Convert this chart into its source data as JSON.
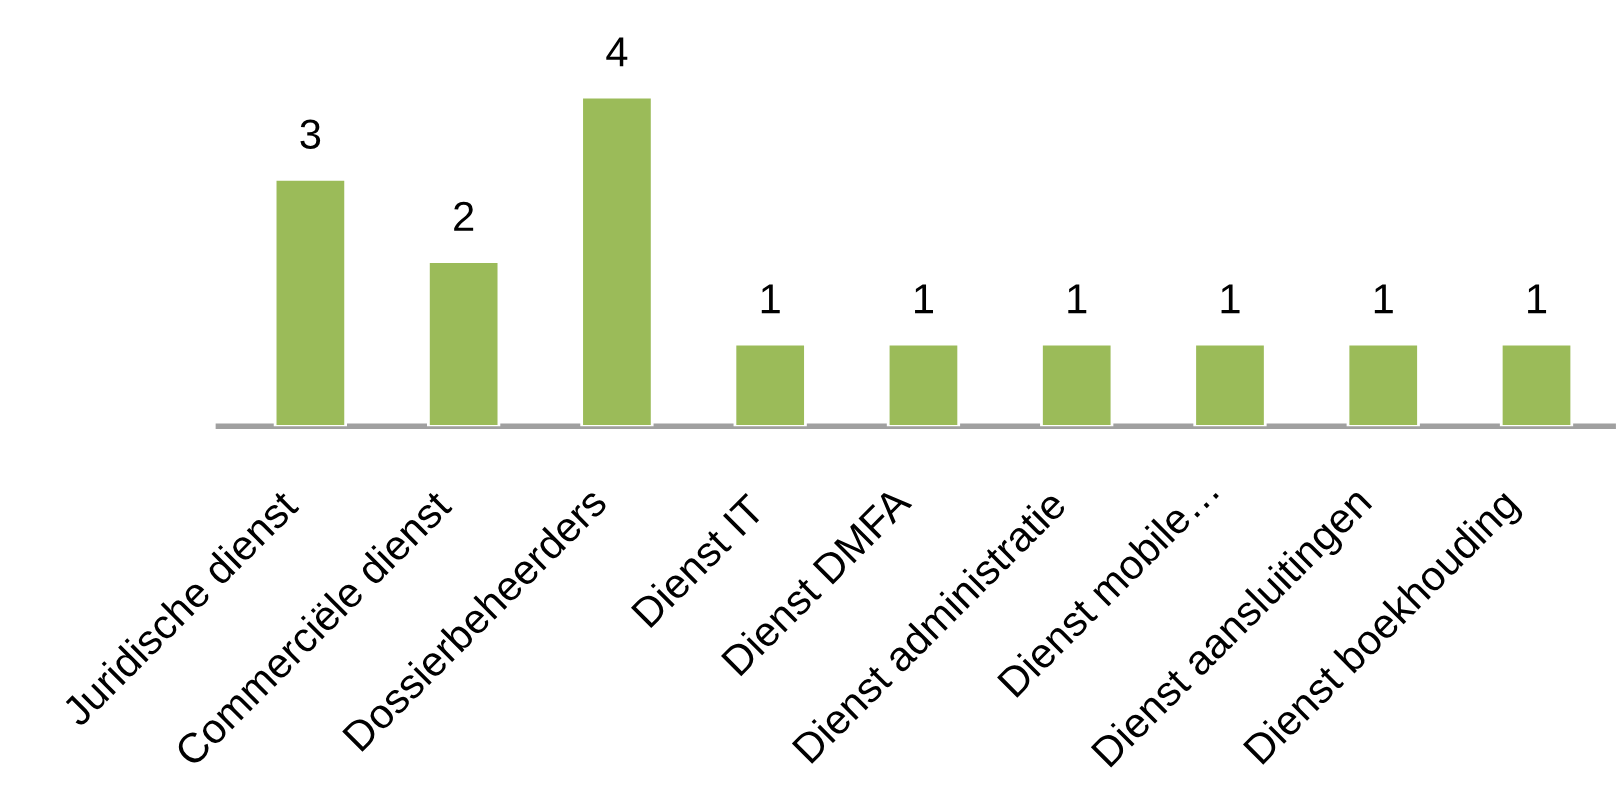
{
  "chart_data": {
    "type": "bar",
    "categories": [
      "Juridische dienst",
      "Commerciële dienst",
      "Dossierbeheerders",
      "Dienst IT",
      "Dienst DMFA",
      "Dienst administratie",
      "Dienst mobile…",
      "Dienst aansluitingen",
      "Dienst boekhouding"
    ],
    "values": [
      3,
      2,
      4,
      1,
      1,
      1,
      1,
      1,
      1
    ],
    "color": "#9bbb59",
    "data_labels": true,
    "grid": false,
    "legend": false
  }
}
